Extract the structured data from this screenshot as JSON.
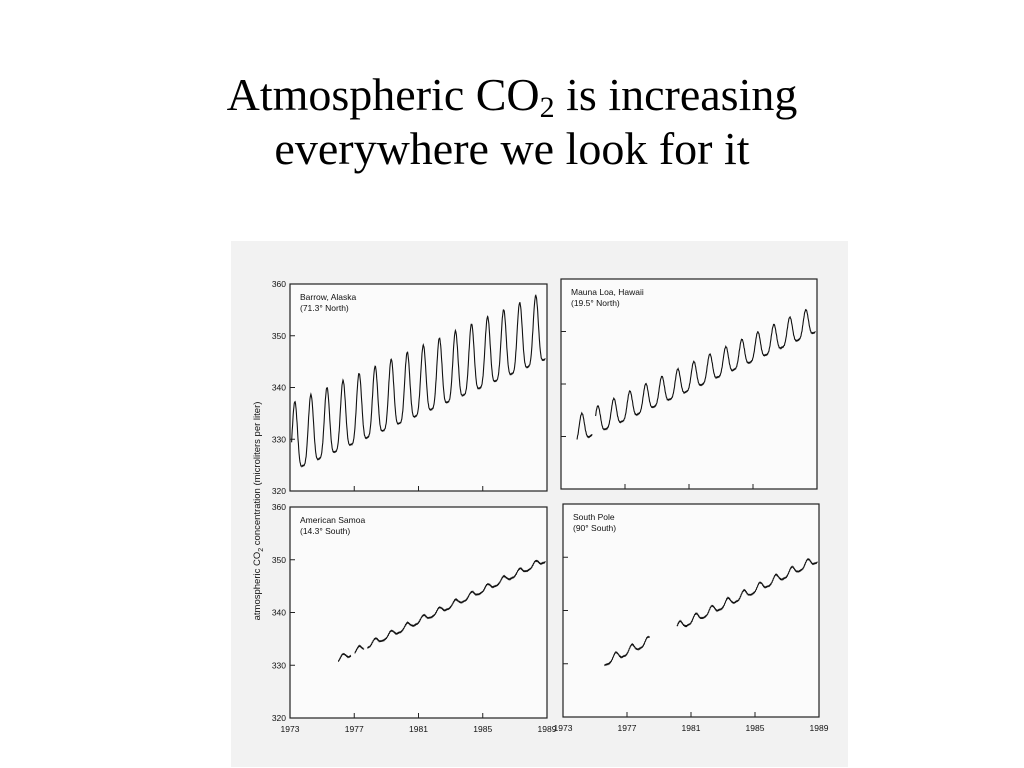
{
  "slide": {
    "title_pre": "Atmospheric CO",
    "title_sub": "2",
    "title_post": " is increasing",
    "title_line2": "everywhere we look for it"
  },
  "figure": {
    "ylabel_pre": "atmospheric CO",
    "ylabel_sub": "2",
    "ylabel_post": " concentration (microliters per liter)"
  },
  "chart_data": [
    {
      "type": "line",
      "panel": "top-left",
      "label_lines": [
        "Barrow, Alaska",
        "(71.3° North)"
      ],
      "xlim": [
        1973,
        1989
      ],
      "ylim": [
        320,
        360
      ],
      "xticks": [
        "1973",
        "1977",
        "1981",
        "1985",
        "1989"
      ],
      "yticks": [
        "320",
        "330",
        "340",
        "350",
        "360"
      ],
      "show_x_ticklabels": false,
      "show_y_ticklabels": true,
      "series": [
        {
          "x_start": 1973.1,
          "x_end": 1988.9,
          "base_start": 328.8,
          "base_end": 350.4,
          "amplitude": 7.2,
          "breaks": []
        }
      ]
    },
    {
      "type": "line",
      "panel": "top-right",
      "label_lines": [
        "Mauna Loa, Hawaii",
        "(19.5° North)"
      ],
      "xlim": [
        1973,
        1989
      ],
      "ylim": [
        320,
        360
      ],
      "xticks": [
        "1973",
        "1977",
        "1981",
        "1985",
        "1989"
      ],
      "yticks": [
        "320",
        "330",
        "340",
        "350",
        "360"
      ],
      "show_x_ticklabels": false,
      "show_y_ticklabels": false,
      "series": [
        {
          "x_start": 1974.0,
          "x_end": 1988.9,
          "base_start": 330.8,
          "base_end": 351.8,
          "amplitude": 2.8,
          "breaks": [
            [
              1974.95,
              1975.15
            ]
          ]
        }
      ]
    },
    {
      "type": "line",
      "panel": "bottom-left",
      "label_lines": [
        "American Samoa",
        "(14.3° South)"
      ],
      "xlim": [
        1973,
        1989
      ],
      "ylim": [
        320,
        360
      ],
      "xticks": [
        "1973",
        "1977",
        "1981",
        "1985",
        "1989"
      ],
      "yticks": [
        "320",
        "330",
        "340",
        "350",
        "360"
      ],
      "show_x_ticklabels": true,
      "show_y_ticklabels": true,
      "series": [
        {
          "x_start": 1976.0,
          "x_end": 1988.9,
          "base_start": 331.0,
          "base_end": 350.0,
          "amplitude": 0.6,
          "breaks": [
            [
              1976.8,
              1977.0
            ],
            [
              1977.6,
              1977.8
            ]
          ]
        }
      ]
    },
    {
      "type": "line",
      "panel": "bottom-right",
      "label_lines": [
        "South Pole",
        "(90° South)"
      ],
      "xlim": [
        1973,
        1989
      ],
      "ylim": [
        320,
        360
      ],
      "xticks": [
        "1973",
        "1977",
        "1981",
        "1985",
        "1989"
      ],
      "yticks": [
        "320",
        "330",
        "340",
        "350",
        "360"
      ],
      "show_x_ticklabels": true,
      "show_y_ticklabels": false,
      "series": [
        {
          "x_start": 1975.6,
          "x_end": 1988.9,
          "base_start": 330.2,
          "base_end": 349.6,
          "amplitude": 0.8,
          "breaks": [
            [
              1978.4,
              1980.1
            ]
          ]
        }
      ]
    }
  ]
}
